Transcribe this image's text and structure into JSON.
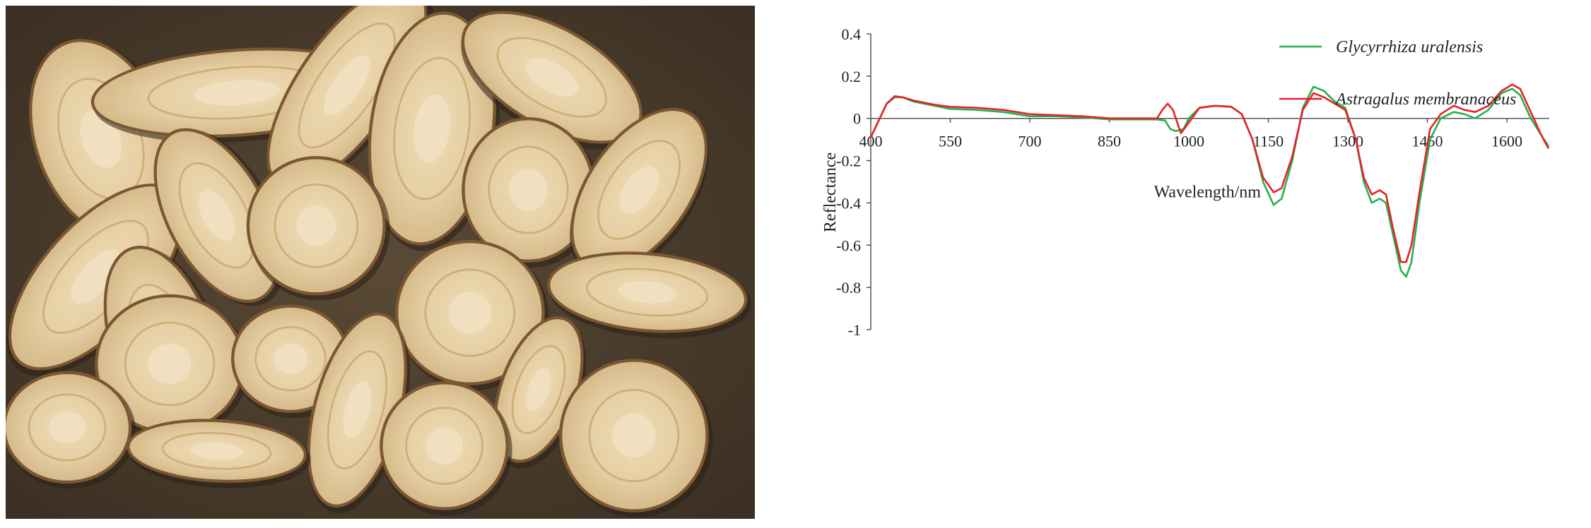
{
  "photo": {
    "description_icon": "herbal-root-slices-photo",
    "background_color": "#4a3d2c",
    "slice_color": "#e8d3ac",
    "bark_color": "#7a5632"
  },
  "chart_data": {
    "type": "line",
    "title": "",
    "xlabel": "Wavelength/nm",
    "ylabel": "Reflectance",
    "xlim": [
      400,
      1680
    ],
    "ylim": [
      -1,
      0.4
    ],
    "x_ticks": [
      400,
      550,
      700,
      850,
      1000,
      1150,
      1300,
      1450,
      1600
    ],
    "y_ticks": [
      0.4,
      0.2,
      0,
      -0.2,
      -0.4,
      -0.6,
      -0.8,
      -1
    ],
    "grid": false,
    "legend_position": "top-right",
    "series": [
      {
        "name": "Glycyrrhiza uralensis",
        "color": "#22b14c",
        "points": [
          [
            400,
            -0.09
          ],
          [
            415,
            -0.01
          ],
          [
            430,
            0.07
          ],
          [
            445,
            0.1
          ],
          [
            460,
            0.1
          ],
          [
            480,
            0.08
          ],
          [
            520,
            0.06
          ],
          [
            550,
            0.045
          ],
          [
            600,
            0.04
          ],
          [
            650,
            0.03
          ],
          [
            700,
            0.01
          ],
          [
            750,
            0.01
          ],
          [
            800,
            0.005
          ],
          [
            850,
            -0.005
          ],
          [
            900,
            -0.005
          ],
          [
            940,
            -0.005
          ],
          [
            955,
            -0.01
          ],
          [
            965,
            -0.05
          ],
          [
            975,
            -0.06
          ],
          [
            990,
            -0.05
          ],
          [
            1000,
            0.0
          ],
          [
            1020,
            0.05
          ],
          [
            1050,
            0.06
          ],
          [
            1080,
            0.055
          ],
          [
            1100,
            0.02
          ],
          [
            1120,
            -0.1
          ],
          [
            1140,
            -0.3
          ],
          [
            1160,
            -0.41
          ],
          [
            1175,
            -0.38
          ],
          [
            1195,
            -0.2
          ],
          [
            1215,
            0.05
          ],
          [
            1235,
            0.15
          ],
          [
            1255,
            0.13
          ],
          [
            1275,
            0.08
          ],
          [
            1295,
            0.05
          ],
          [
            1315,
            -0.1
          ],
          [
            1330,
            -0.3
          ],
          [
            1345,
            -0.4
          ],
          [
            1360,
            -0.38
          ],
          [
            1372,
            -0.4
          ],
          [
            1385,
            -0.55
          ],
          [
            1400,
            -0.72
          ],
          [
            1410,
            -0.75
          ],
          [
            1420,
            -0.68
          ],
          [
            1435,
            -0.4
          ],
          [
            1455,
            -0.1
          ],
          [
            1475,
            0.0
          ],
          [
            1500,
            0.03
          ],
          [
            1520,
            0.02
          ],
          [
            1540,
            0.0
          ],
          [
            1565,
            0.04
          ],
          [
            1590,
            0.12
          ],
          [
            1610,
            0.14
          ],
          [
            1625,
            0.11
          ],
          [
            1645,
            0.0
          ],
          [
            1665,
            -0.08
          ],
          [
            1678,
            -0.13
          ]
        ]
      },
      {
        "name": "Astragalus membranaceus",
        "color": "#e8202a",
        "points": [
          [
            400,
            -0.09
          ],
          [
            415,
            -0.01
          ],
          [
            430,
            0.07
          ],
          [
            445,
            0.105
          ],
          [
            460,
            0.1
          ],
          [
            480,
            0.085
          ],
          [
            520,
            0.065
          ],
          [
            550,
            0.055
          ],
          [
            600,
            0.05
          ],
          [
            650,
            0.04
          ],
          [
            700,
            0.02
          ],
          [
            750,
            0.015
          ],
          [
            800,
            0.01
          ],
          [
            850,
            0.0
          ],
          [
            900,
            0.0
          ],
          [
            940,
            0.0
          ],
          [
            950,
            0.04
          ],
          [
            960,
            0.07
          ],
          [
            970,
            0.04
          ],
          [
            985,
            -0.07
          ],
          [
            1000,
            -0.02
          ],
          [
            1020,
            0.05
          ],
          [
            1050,
            0.06
          ],
          [
            1080,
            0.055
          ],
          [
            1100,
            0.02
          ],
          [
            1120,
            -0.1
          ],
          [
            1140,
            -0.28
          ],
          [
            1160,
            -0.35
          ],
          [
            1175,
            -0.33
          ],
          [
            1195,
            -0.18
          ],
          [
            1215,
            0.04
          ],
          [
            1235,
            0.12
          ],
          [
            1255,
            0.1
          ],
          [
            1275,
            0.07
          ],
          [
            1295,
            0.04
          ],
          [
            1315,
            -0.1
          ],
          [
            1330,
            -0.28
          ],
          [
            1345,
            -0.36
          ],
          [
            1360,
            -0.34
          ],
          [
            1372,
            -0.36
          ],
          [
            1385,
            -0.52
          ],
          [
            1400,
            -0.68
          ],
          [
            1410,
            -0.68
          ],
          [
            1420,
            -0.6
          ],
          [
            1435,
            -0.35
          ],
          [
            1455,
            -0.05
          ],
          [
            1475,
            0.02
          ],
          [
            1500,
            0.06
          ],
          [
            1520,
            0.04
          ],
          [
            1540,
            0.03
          ],
          [
            1565,
            0.06
          ],
          [
            1590,
            0.13
          ],
          [
            1610,
            0.16
          ],
          [
            1625,
            0.14
          ],
          [
            1645,
            0.03
          ],
          [
            1665,
            -0.08
          ],
          [
            1678,
            -0.14
          ]
        ]
      }
    ]
  }
}
